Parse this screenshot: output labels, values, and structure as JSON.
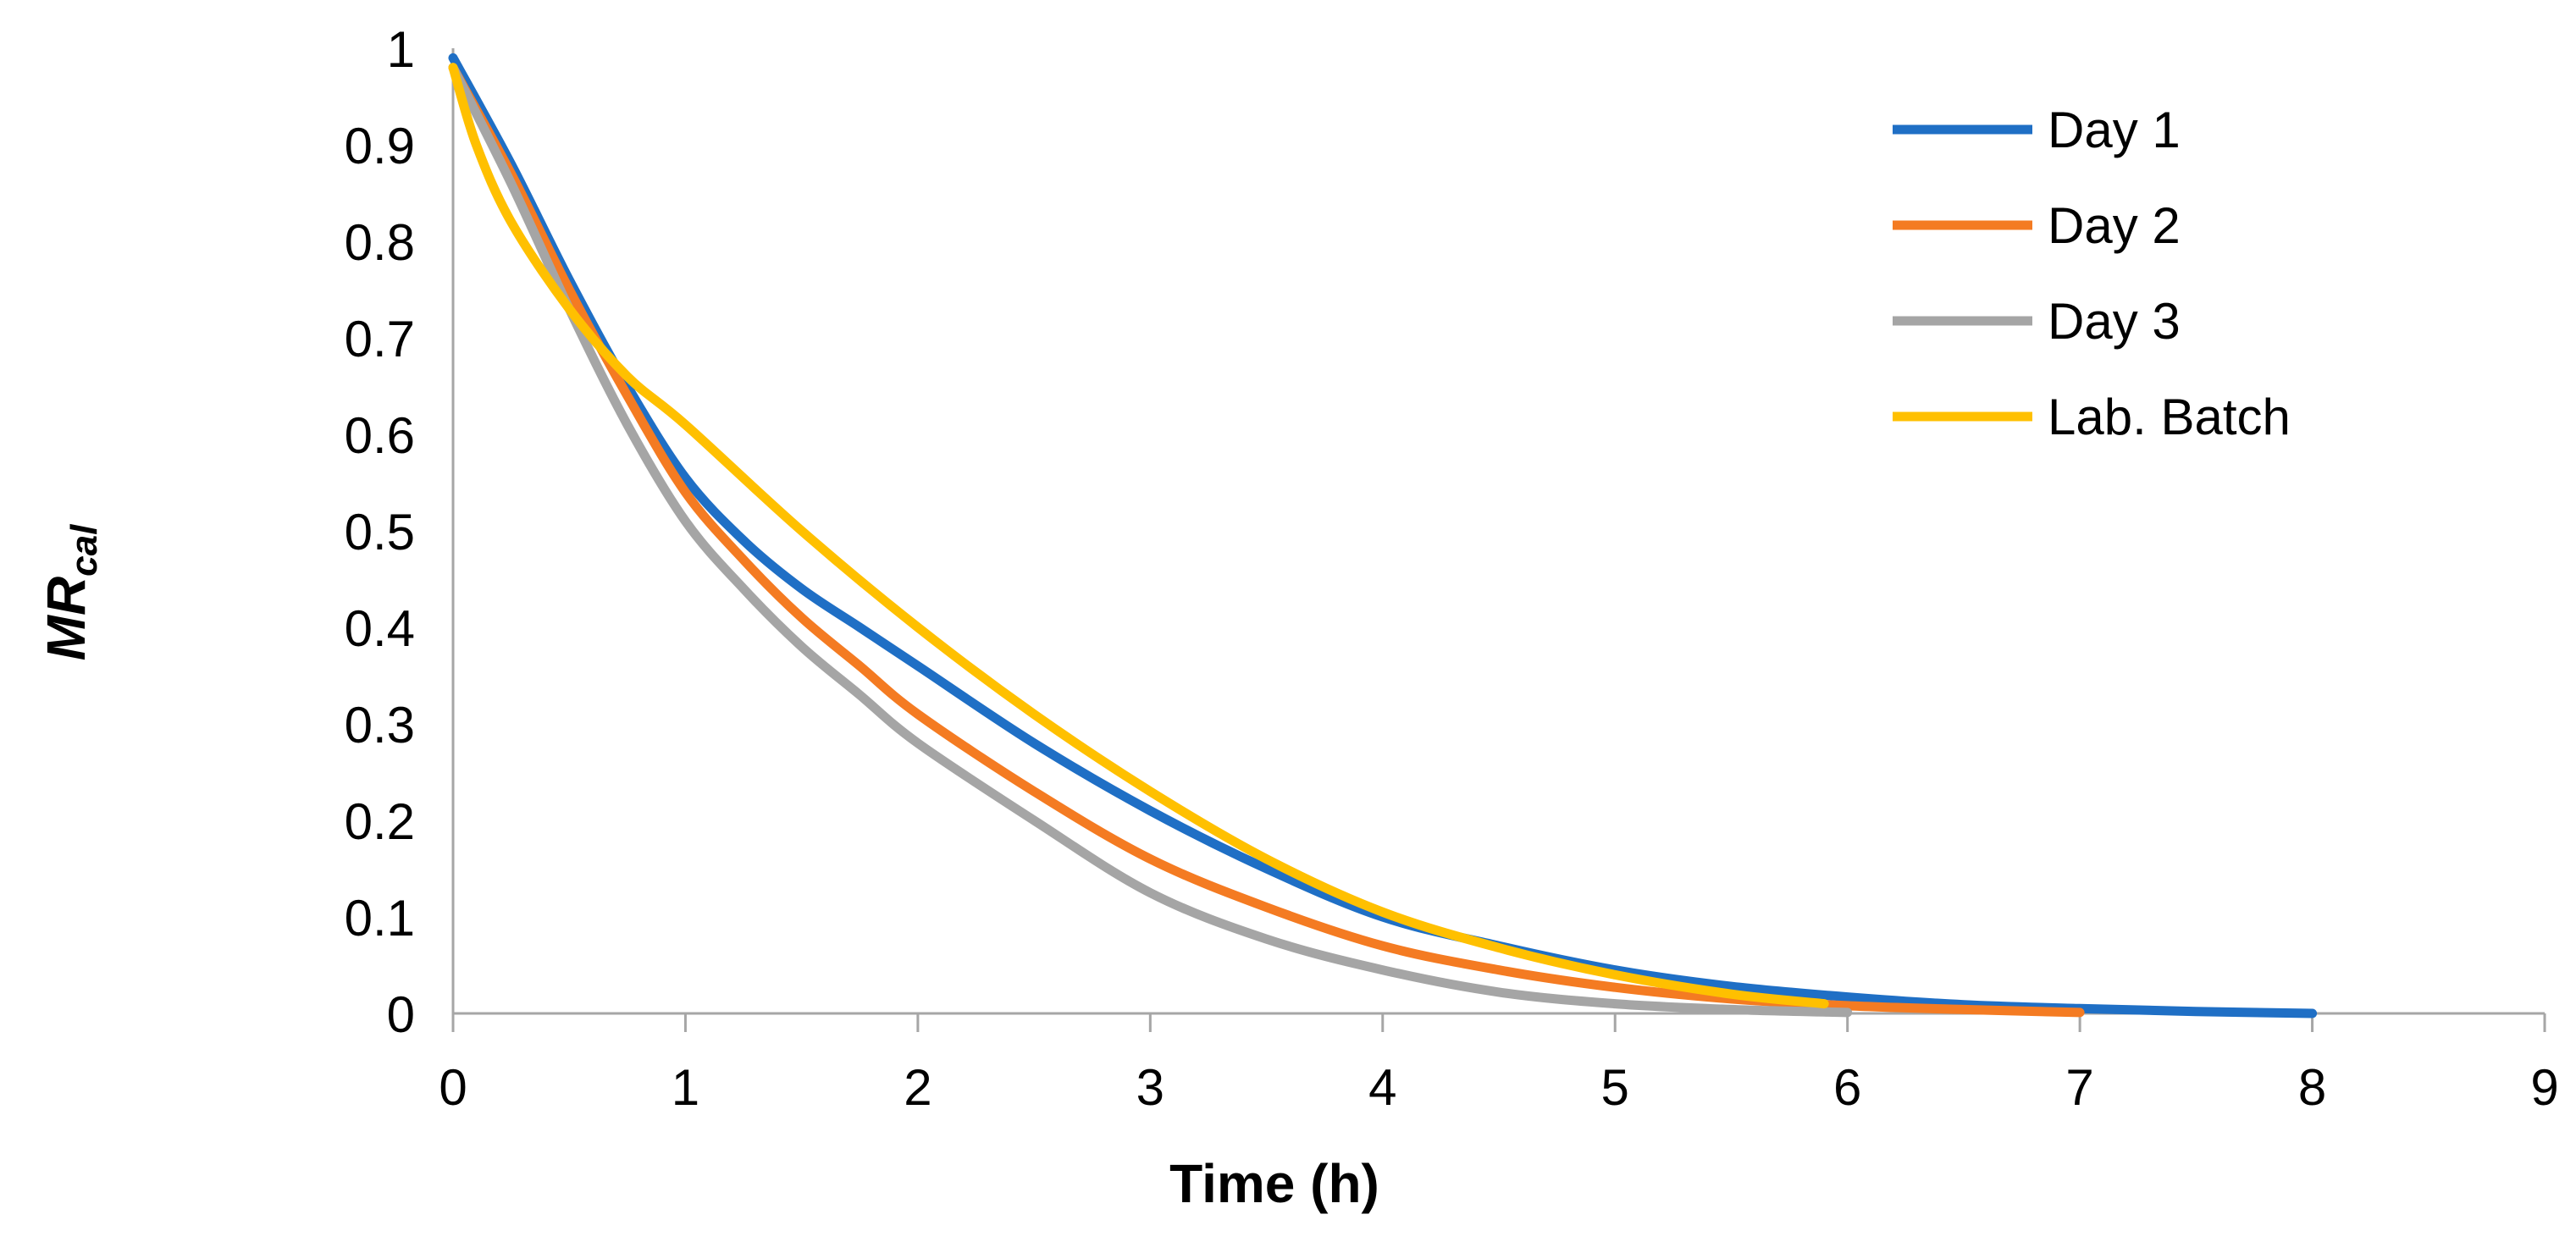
{
  "chart_data": {
    "type": "line",
    "title": "",
    "xlabel": "Time (h)",
    "ylabel": {
      "main": "MR",
      "sub": "cal"
    },
    "xlim": [
      0,
      9
    ],
    "ylim": [
      0,
      1
    ],
    "xticks": [
      0,
      1,
      2,
      3,
      4,
      5,
      6,
      7,
      8,
      9
    ],
    "yticks": [
      0,
      0.1,
      0.2,
      0.3,
      0.4,
      0.5,
      0.6,
      0.7,
      0.8,
      0.9,
      1
    ],
    "grid": false,
    "legend_position": "top-right",
    "series": [
      {
        "name": "Day 1",
        "color": "#1F6FC5",
        "x": [
          0,
          0.25,
          0.5,
          0.75,
          1.0,
          1.25,
          1.5,
          1.75,
          2.0,
          2.5,
          3.0,
          3.5,
          4.0,
          4.5,
          5.0,
          5.5,
          6.0,
          6.5,
          7.0,
          7.5,
          8.0
        ],
        "y": [
          0.99,
          0.88,
          0.76,
          0.65,
          0.555,
          0.49,
          0.44,
          0.4,
          0.36,
          0.28,
          0.21,
          0.15,
          0.1,
          0.07,
          0.045,
          0.028,
          0.017,
          0.009,
          0.005,
          0.002,
          0.0
        ]
      },
      {
        "name": "Day 2",
        "color": "#F47B22",
        "x": [
          0,
          0.25,
          0.5,
          0.75,
          1.0,
          1.25,
          1.5,
          1.75,
          2.0,
          2.5,
          3.0,
          3.5,
          4.0,
          4.5,
          5.0,
          5.5,
          6.0,
          6.5,
          7.0
        ],
        "y": [
          0.98,
          0.87,
          0.75,
          0.64,
          0.54,
          0.47,
          0.41,
          0.36,
          0.31,
          0.23,
          0.16,
          0.11,
          0.07,
          0.045,
          0.027,
          0.015,
          0.008,
          0.004,
          0.001
        ]
      },
      {
        "name": "Day 3",
        "color": "#A5A5A5",
        "x": [
          0,
          0.25,
          0.5,
          0.75,
          1.0,
          1.25,
          1.5,
          1.75,
          2.0,
          2.5,
          3.0,
          3.5,
          4.0,
          4.5,
          5.0,
          5.5,
          6.0
        ],
        "y": [
          0.98,
          0.86,
          0.73,
          0.61,
          0.51,
          0.44,
          0.38,
          0.33,
          0.28,
          0.2,
          0.125,
          0.077,
          0.045,
          0.022,
          0.01,
          0.004,
          0.001
        ]
      },
      {
        "name": "Lab. Batch",
        "color": "#FFC000",
        "x": [
          0,
          0.1,
          0.25,
          0.5,
          0.75,
          1.0,
          1.5,
          2.0,
          2.5,
          3.0,
          3.5,
          4.0,
          4.5,
          5.0,
          5.5,
          5.9
        ],
        "y": [
          0.98,
          0.9,
          0.82,
          0.73,
          0.66,
          0.61,
          0.5,
          0.4,
          0.31,
          0.23,
          0.16,
          0.105,
          0.068,
          0.04,
          0.02,
          0.01
        ]
      }
    ]
  }
}
